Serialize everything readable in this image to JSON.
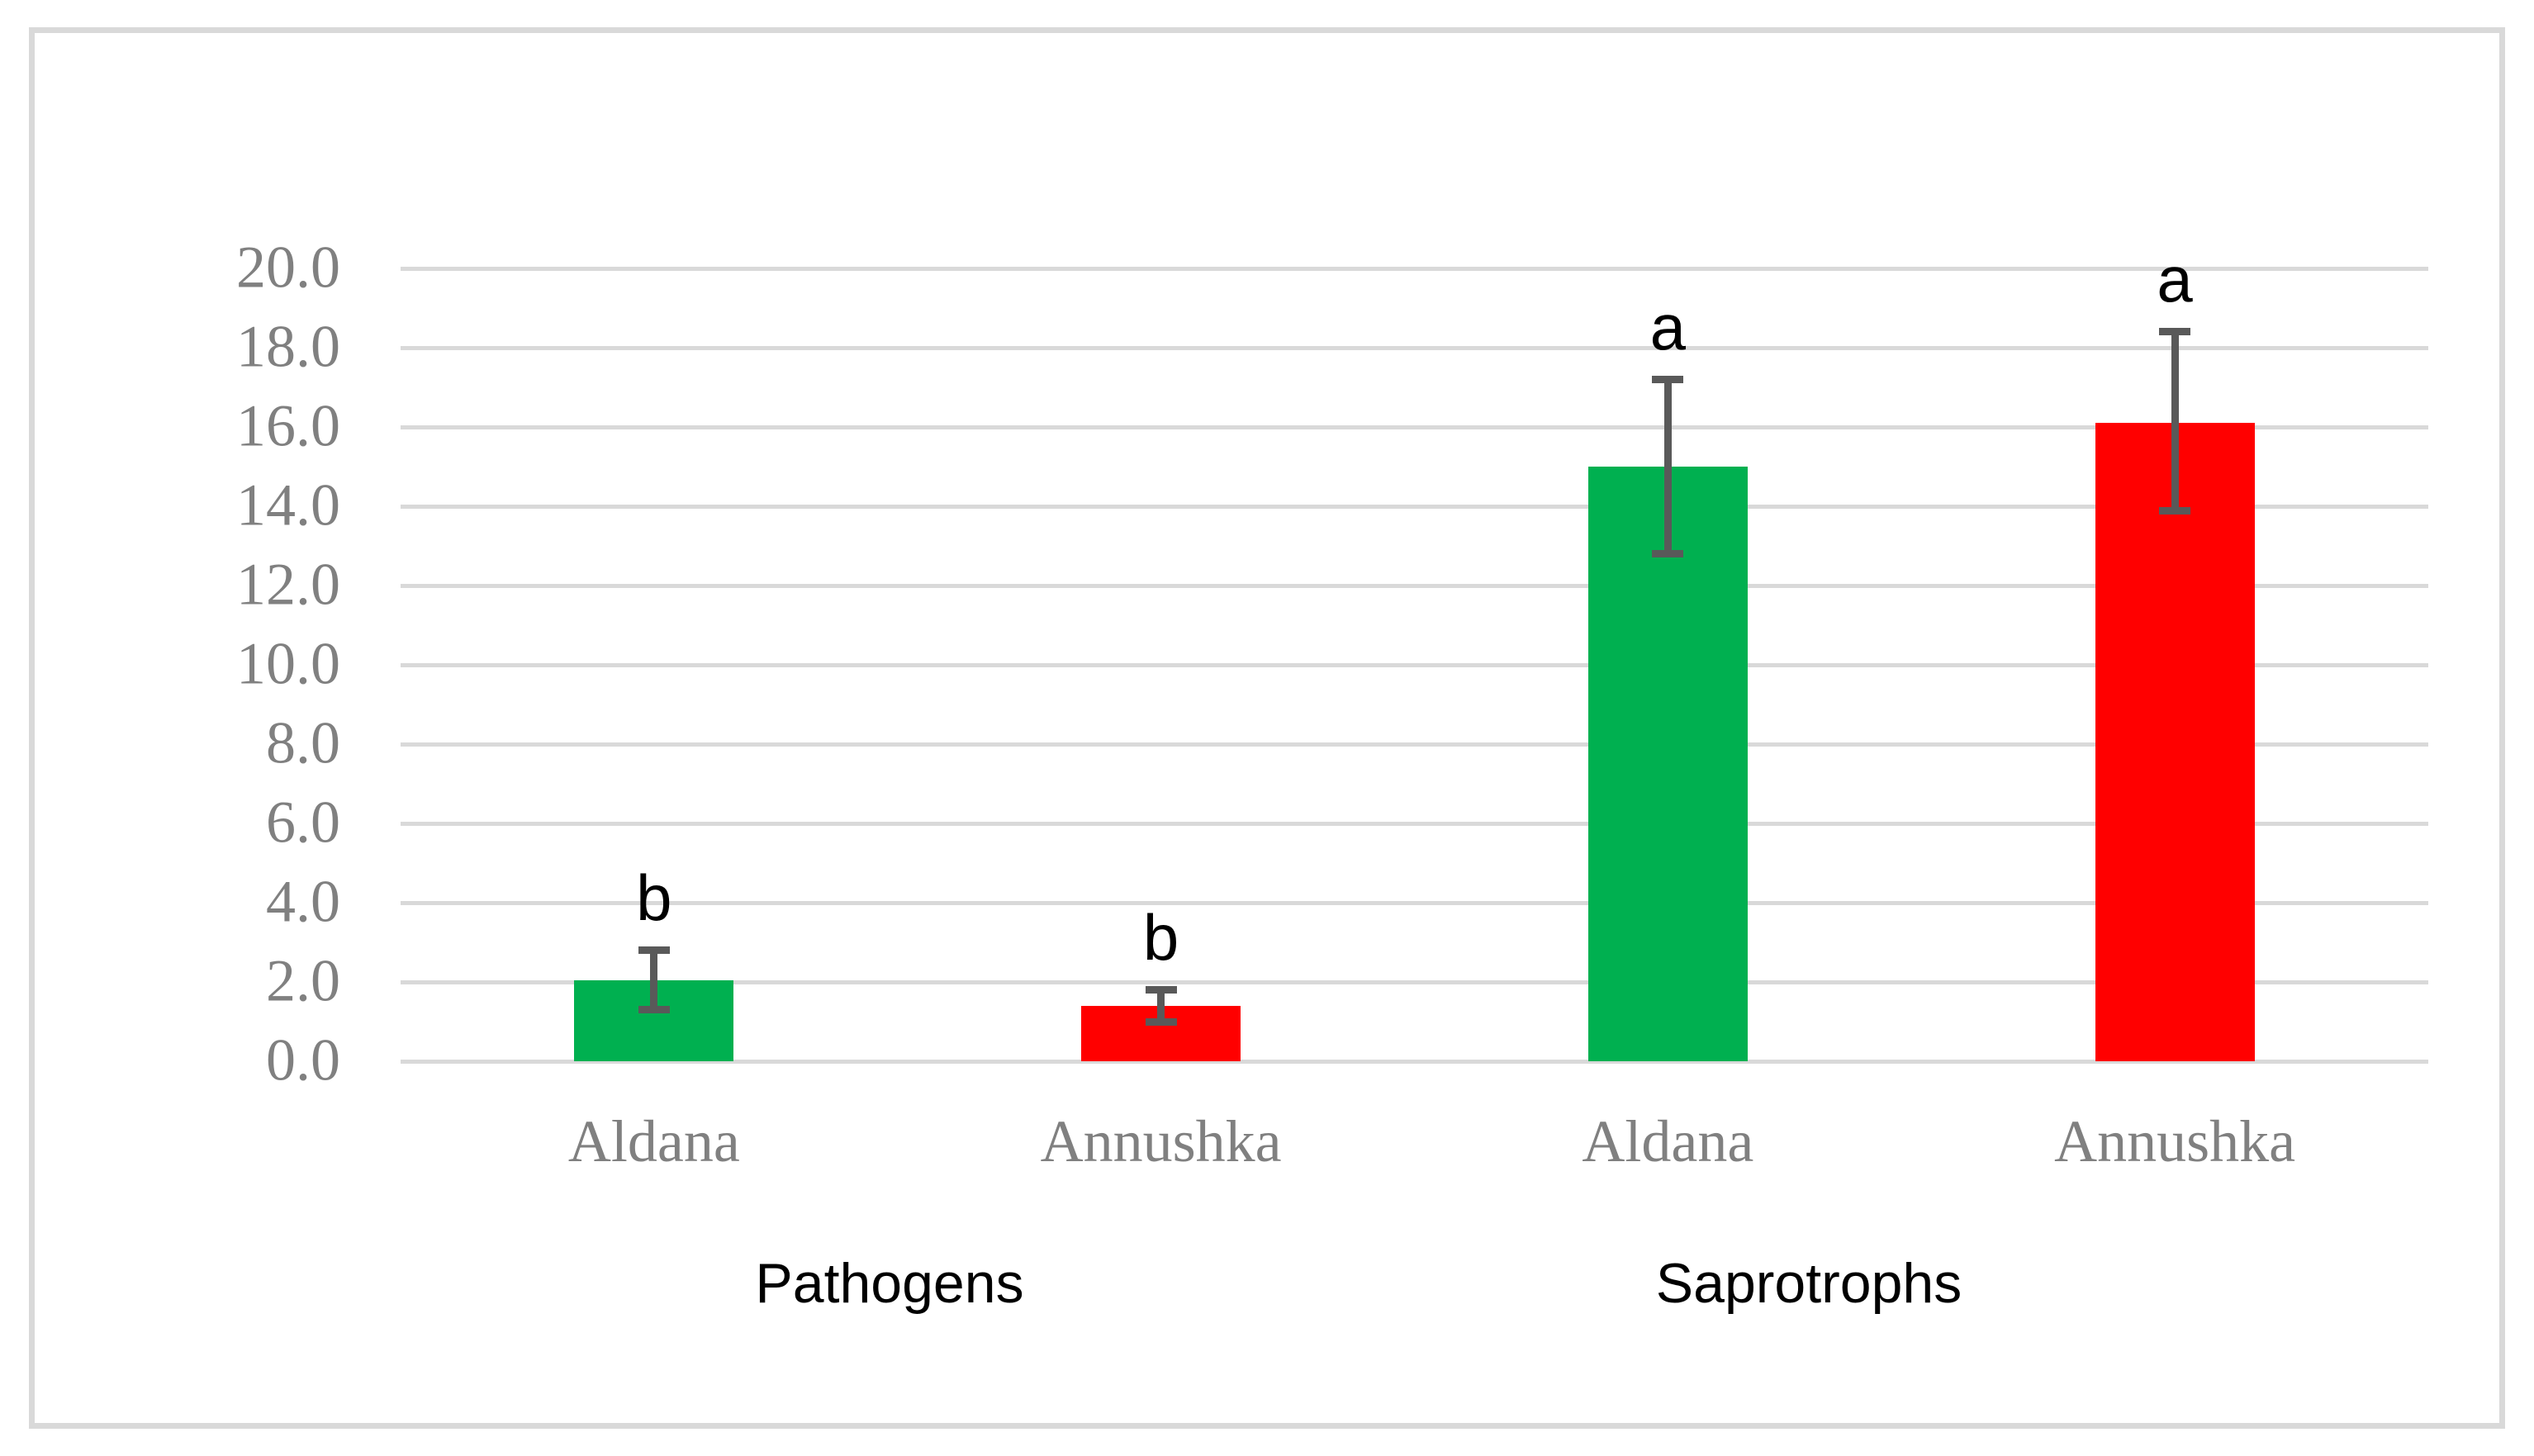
{
  "figure": {
    "background": "#FFFFFF",
    "border_color": "#D9D9D9",
    "title": ""
  },
  "chart_data": {
    "type": "bar",
    "title": "",
    "xlabel": "",
    "ylabel": "",
    "grid": true,
    "legend": false,
    "y_axis": {
      "min": 0,
      "max": 20,
      "step": 2,
      "tick_labels": [
        "0.0",
        "2.0",
        "4.0",
        "6.0",
        "8.0",
        "10.0",
        "12.0",
        "14.0",
        "16.0",
        "18.0",
        "20.0"
      ]
    },
    "groups": [
      {
        "label": "Pathogens",
        "bars": [
          {
            "category": "Aldana",
            "value": 2.05,
            "error_low": 1.2,
            "error_high": 2.9,
            "color": "#00B050",
            "sig_letter": "b"
          },
          {
            "category": "Annushka",
            "value": 1.4,
            "error_low": 0.9,
            "error_high": 1.9,
            "color": "#FF0000",
            "sig_letter": "b"
          }
        ]
      },
      {
        "label": "Saprotrophs",
        "bars": [
          {
            "category": "Aldana",
            "value": 15.0,
            "error_low": 12.7,
            "error_high": 17.3,
            "color": "#00B050",
            "sig_letter": "a"
          },
          {
            "category": "Annushka",
            "value": 16.1,
            "error_low": 13.8,
            "error_high": 18.5,
            "color": "#FF0000",
            "sig_letter": "a"
          }
        ]
      }
    ],
    "colors": {
      "bar_green": "#00B050",
      "bar_red": "#FF0000",
      "error_bar": "#595959",
      "gridline": "#D9D9D9",
      "axis_text": "#808080",
      "group_label_text": "#000000"
    }
  }
}
